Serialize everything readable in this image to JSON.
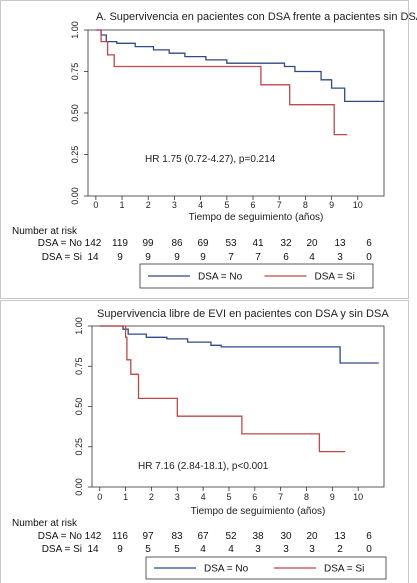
{
  "chart_data": [
    {
      "type": "line",
      "subtype": "kaplan-meier",
      "title": "A. Supervivencia en pacientes con DSA frente a pacientes sin DSA",
      "xlabel": "Tiempo de seguimiento (años)",
      "ylabel": "",
      "xlim": [
        -0.3,
        11
      ],
      "ylim": [
        0,
        1
      ],
      "x_ticks": [
        0,
        1,
        2,
        3,
        4,
        5,
        6,
        7,
        8,
        9,
        10
      ],
      "y_ticks": [
        "0.00",
        "0.25",
        "0.50",
        "0.75",
        "1.00"
      ],
      "annotation": "HR 1.75 (0.72-4.27), p=0.214",
      "series": [
        {
          "name": "DSA = No",
          "color": "#2f4a87",
          "steps": [
            [
              0,
              1.0
            ],
            [
              0.2,
              0.97
            ],
            [
              0.4,
              0.93
            ],
            [
              0.8,
              0.92
            ],
            [
              1.5,
              0.9
            ],
            [
              2.2,
              0.88
            ],
            [
              2.8,
              0.86
            ],
            [
              3.4,
              0.84
            ],
            [
              4.2,
              0.82
            ],
            [
              5.0,
              0.8
            ],
            [
              7.2,
              0.78
            ],
            [
              7.6,
              0.75
            ],
            [
              8.6,
              0.7
            ],
            [
              9.0,
              0.65
            ],
            [
              9.5,
              0.57
            ],
            [
              11,
              0.57
            ]
          ]
        },
        {
          "name": "DSA = Si",
          "color": "#c0474a",
          "steps": [
            [
              0,
              1.0
            ],
            [
              0.2,
              0.93
            ],
            [
              0.45,
              0.85
            ],
            [
              0.7,
              0.78
            ],
            [
              6.3,
              0.67
            ],
            [
              7.4,
              0.55
            ],
            [
              9.1,
              0.37
            ],
            [
              9.6,
              0.37
            ]
          ]
        }
      ],
      "number_at_risk": {
        "label": "Number at risk",
        "rows": [
          {
            "label": "DSA = No",
            "values": [
              "142",
              "119",
              "99",
              "86",
              "69",
              "53",
              "41",
              "32",
              "20",
              "13",
              "6"
            ]
          },
          {
            "label": "DSA = Si",
            "values": [
              "14",
              "9",
              "9",
              "9",
              "9",
              "7",
              "7",
              "6",
              "4",
              "3",
              "0"
            ]
          }
        ]
      },
      "legend": {
        "placement": "bottom",
        "items": [
          "DSA = No",
          "DSA = Si"
        ]
      }
    },
    {
      "type": "line",
      "subtype": "kaplan-meier",
      "title": "Supervivencia libre de EVI en pacientes con DSA y sin DSA",
      "xlabel": "Tiempo de seguimiento (años)",
      "ylabel": "",
      "xlim": [
        -0.3,
        11
      ],
      "ylim": [
        0,
        1
      ],
      "x_ticks": [
        0,
        1,
        2,
        3,
        4,
        5,
        6,
        7,
        8,
        9,
        10
      ],
      "y_ticks": [
        "0.00",
        "0.25",
        "0.50",
        "0.75",
        "1.00"
      ],
      "annotation": "HR 7.16 (2.84-18.1), p<0.001",
      "series": [
        {
          "name": "DSA = No",
          "color": "#2f4a87",
          "steps": [
            [
              0,
              1.0
            ],
            [
              0.9,
              0.98
            ],
            [
              1.1,
              0.95
            ],
            [
              1.8,
              0.93
            ],
            [
              2.6,
              0.92
            ],
            [
              3.4,
              0.9
            ],
            [
              4.3,
              0.88
            ],
            [
              4.7,
              0.87
            ],
            [
              9.3,
              0.77
            ],
            [
              10.8,
              0.77
            ]
          ]
        },
        {
          "name": "DSA = Si",
          "color": "#c0474a",
          "steps": [
            [
              0,
              1.0
            ],
            [
              1.0,
              0.93
            ],
            [
              1.05,
              0.79
            ],
            [
              1.2,
              0.7
            ],
            [
              1.5,
              0.55
            ],
            [
              3.0,
              0.44
            ],
            [
              5.5,
              0.33
            ],
            [
              8.5,
              0.22
            ],
            [
              9.5,
              0.22
            ]
          ]
        }
      ],
      "number_at_risk": {
        "label": "Number at risk",
        "rows": [
          {
            "label": "DSA = No",
            "values": [
              "142",
              "116",
              "97",
              "83",
              "67",
              "52",
              "38",
              "30",
              "20",
              "13",
              "6"
            ]
          },
          {
            "label": "DSA = Si",
            "values": [
              "14",
              "9",
              "5",
              "5",
              "4",
              "4",
              "3",
              "3",
              "3",
              "2",
              "0"
            ]
          }
        ]
      },
      "legend": {
        "placement": "bottom",
        "items": [
          "DSA = No",
          "DSA = Si"
        ]
      }
    }
  ]
}
